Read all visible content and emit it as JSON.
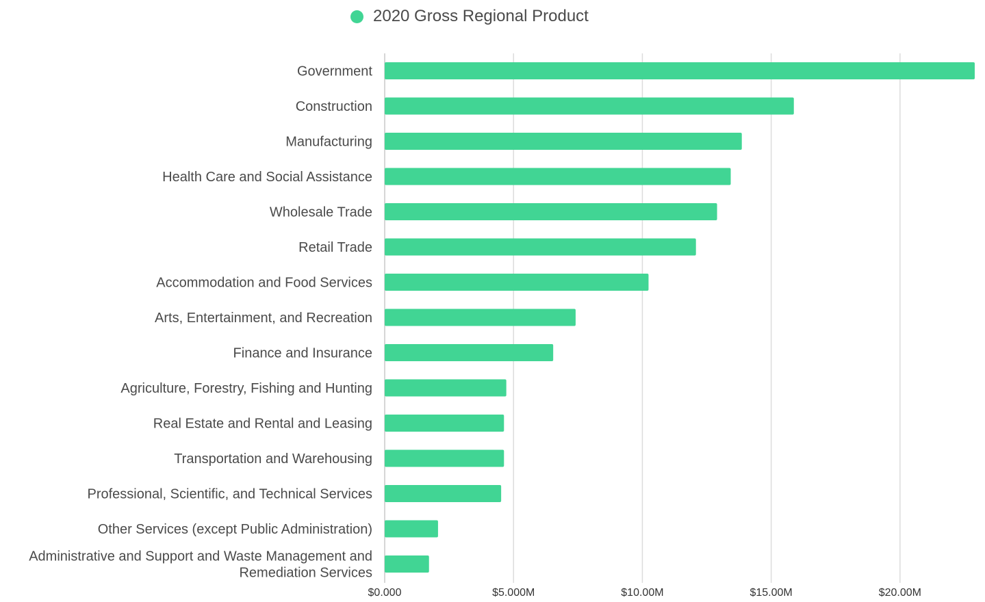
{
  "colors": {
    "bar": "#41d594",
    "legend_text": "#4a4a4a",
    "grid": "#dcdcdc"
  },
  "chart_data": {
    "type": "bar",
    "orientation": "horizontal",
    "legend": {
      "position": "top",
      "label": "2020 Gross Regional Product"
    },
    "grid": true,
    "xlim": [
      0,
      22900000
    ],
    "x_ticks": [
      {
        "value": 0,
        "label": "$0.000"
      },
      {
        "value": 5000000,
        "label": "$5.000M"
      },
      {
        "value": 10000000,
        "label": "$10.00M"
      },
      {
        "value": 15000000,
        "label": "$15.00M"
      },
      {
        "value": 20000000,
        "label": "$20.00M"
      }
    ],
    "categories": [
      [
        "Government"
      ],
      [
        "Construction"
      ],
      [
        "Manufacturing"
      ],
      [
        "Health Care and Social Assistance"
      ],
      [
        "Wholesale Trade"
      ],
      [
        "Retail Trade"
      ],
      [
        "Accommodation and Food Services"
      ],
      [
        "Arts, Entertainment, and Recreation"
      ],
      [
        "Finance and Insurance"
      ],
      [
        "Agriculture, Forestry, Fishing and Hunting"
      ],
      [
        "Real Estate and Rental and Leasing"
      ],
      [
        "Transportation and Warehousing"
      ],
      [
        "Professional, Scientific, and Technical Services"
      ],
      [
        "Other Services (except Public Administration)"
      ],
      [
        "Administrative and Support and Waste Management and",
        "Remediation Services"
      ]
    ],
    "series": [
      {
        "name": "2020 Gross Regional Product",
        "values": [
          22900000,
          15880000,
          13860000,
          13430000,
          12900000,
          12080000,
          10240000,
          7410000,
          6540000,
          4720000,
          4630000,
          4630000,
          4520000,
          2070000,
          1720000
        ]
      }
    ]
  }
}
